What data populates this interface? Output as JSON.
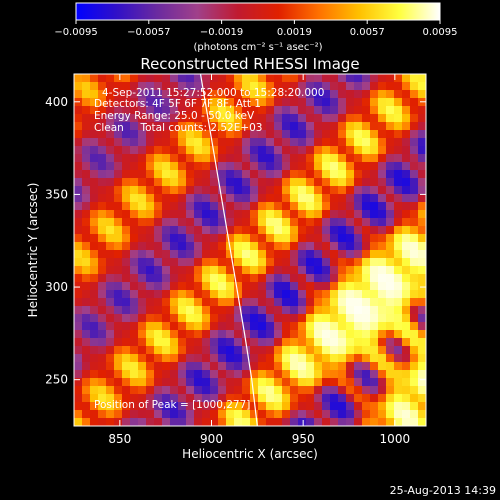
{
  "chart_data": {
    "type": "heatmap",
    "title": "Reconstructed RHESSI Image",
    "xlabel": "Heliocentric X (arcsec)",
    "ylabel": "Heliocentric Y (arcsec)",
    "xlim": [
      825,
      1017
    ],
    "ylim": [
      225,
      415
    ],
    "xticks": [
      850,
      900,
      950,
      1000
    ],
    "yticks": [
      250,
      300,
      350,
      400
    ],
    "colorbar": {
      "range": [
        -0.0095,
        0.0095
      ],
      "ticks": [
        "−0.0095",
        "−0.0057",
        "−0.0019",
        "0.0019",
        "0.0057",
        "0.0095"
      ],
      "unit_label": "(photons cm⁻² s⁻¹ asec⁻²)",
      "colors": [
        "#0000ff",
        "#3010c8",
        "#6a2aa0",
        "#a0408a",
        "#c01a30",
        "#e02000",
        "#ff7000",
        "#ffc000",
        "#ffff40",
        "#ffffff"
      ]
    },
    "annotations": {
      "time": "4-Sep-2011 15:27:52.000 to 15:28:20.000",
      "detectors": "Detectors: 4F 5F 6F 7F 8F, Att 1",
      "energy": "Energy Range: 25.0 - 50.0 keV",
      "clean": "Clean     Total counts: 2.52E+03",
      "peak": "Position of Peak = [1000,277]"
    },
    "limb_curve": [
      [
        894,
        415
      ],
      [
        900,
        380
      ],
      [
        906,
        345
      ],
      [
        912,
        310
      ],
      [
        918,
        275
      ],
      [
        922,
        250
      ],
      [
        925,
        225
      ]
    ],
    "intensity_model": {
      "stripe_direction": "diagonal lower-left to upper-right",
      "peak": [
        1000,
        277
      ]
    }
  },
  "footer": {
    "timestamp": "25-Aug-2013 14:39"
  }
}
